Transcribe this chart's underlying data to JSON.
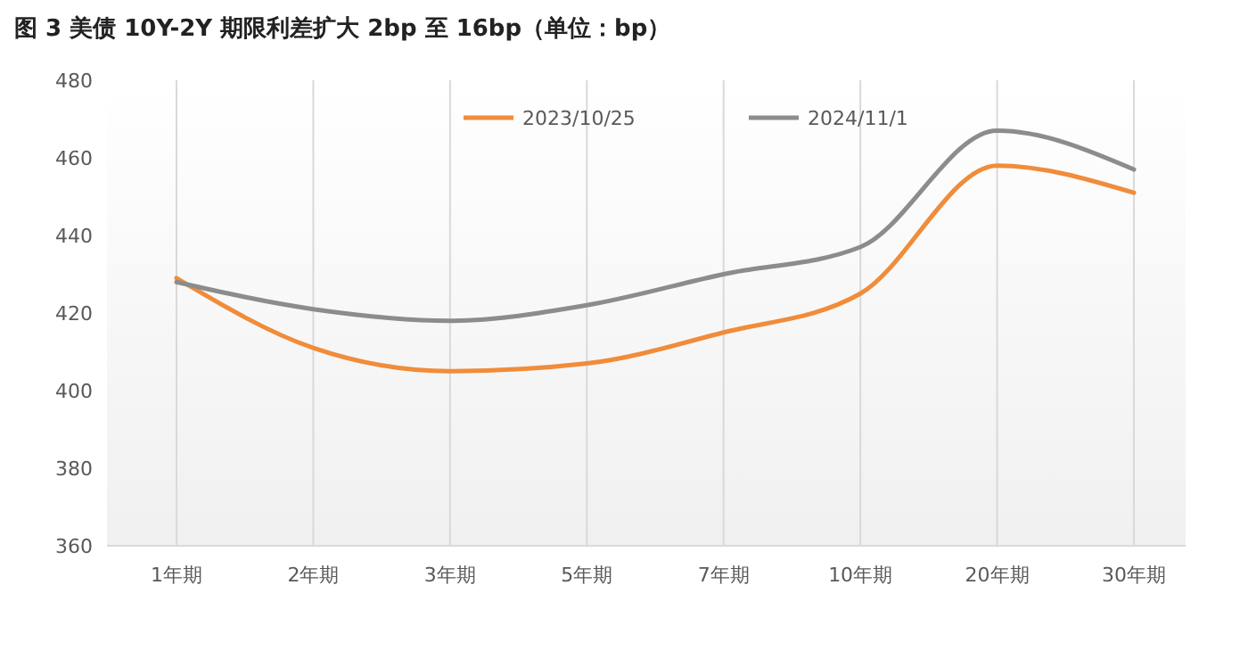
{
  "chart_data": {
    "type": "line",
    "title": "图 3   美债 10Y-2Y 期限利差扩大 2bp 至 16bp（单位：bp）",
    "categories": [
      "1年期",
      "2年期",
      "3年期",
      "5年期",
      "7年期",
      "10年期",
      "20年期",
      "30年期"
    ],
    "series": [
      {
        "name": "2023/10/25",
        "color": "#f08c3a",
        "values": [
          429,
          411,
          405,
          407,
          415,
          425,
          458,
          451
        ]
      },
      {
        "name": "2024/11/1",
        "color": "#8c8c8c",
        "values": [
          428,
          421,
          418,
          422,
          430,
          437,
          467,
          457
        ]
      }
    ],
    "ylim": [
      360,
      480
    ],
    "yticks": [
      360,
      380,
      400,
      420,
      440,
      460,
      480
    ],
    "grid": "x",
    "legend": "top",
    "marker": "none",
    "line_style": "solid"
  }
}
